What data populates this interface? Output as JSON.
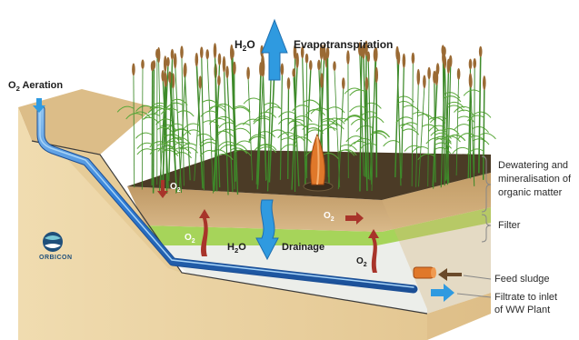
{
  "labels": {
    "aeration_o": "O",
    "aeration_sub": "2",
    "aeration_rest": " Aeration",
    "evap_h": "H",
    "evap_sub": "2",
    "evap_o": "O",
    "evap_text": "Evapotranspiration",
    "drainage_h": "H",
    "drainage_sub": "2",
    "drainage_o": "O",
    "drainage_text": "Drainage",
    "o2_o": "O",
    "o2_sub": "2"
  },
  "side_labels": {
    "dewatering": [
      "Dewatering and",
      "mineralisation of",
      "organic matter"
    ],
    "filter": "Filter",
    "feed_sludge": "Feed sludge",
    "filtrate": [
      "Filtrate to inlet",
      "of WW Plant"
    ]
  },
  "logo": {
    "text": "ORBICON"
  },
  "colors": {
    "ground_side": "#e8cf9e",
    "ground_top": "#dbb984",
    "soil_dark": "#4a3a26",
    "soil_mid": "#c4a16c",
    "filter_green": "#9ccf4e",
    "gravel": "#e9ece8",
    "pipe_blue": "#2f7ed8",
    "arrow_blue": "#2f9ae0",
    "arrow_red": "#a8342a",
    "arrow_brown": "#6a4a2a",
    "sludge_orange": "#e0782a",
    "reed_green": "#3e8a2a",
    "reed_head": "#9a6a34"
  }
}
